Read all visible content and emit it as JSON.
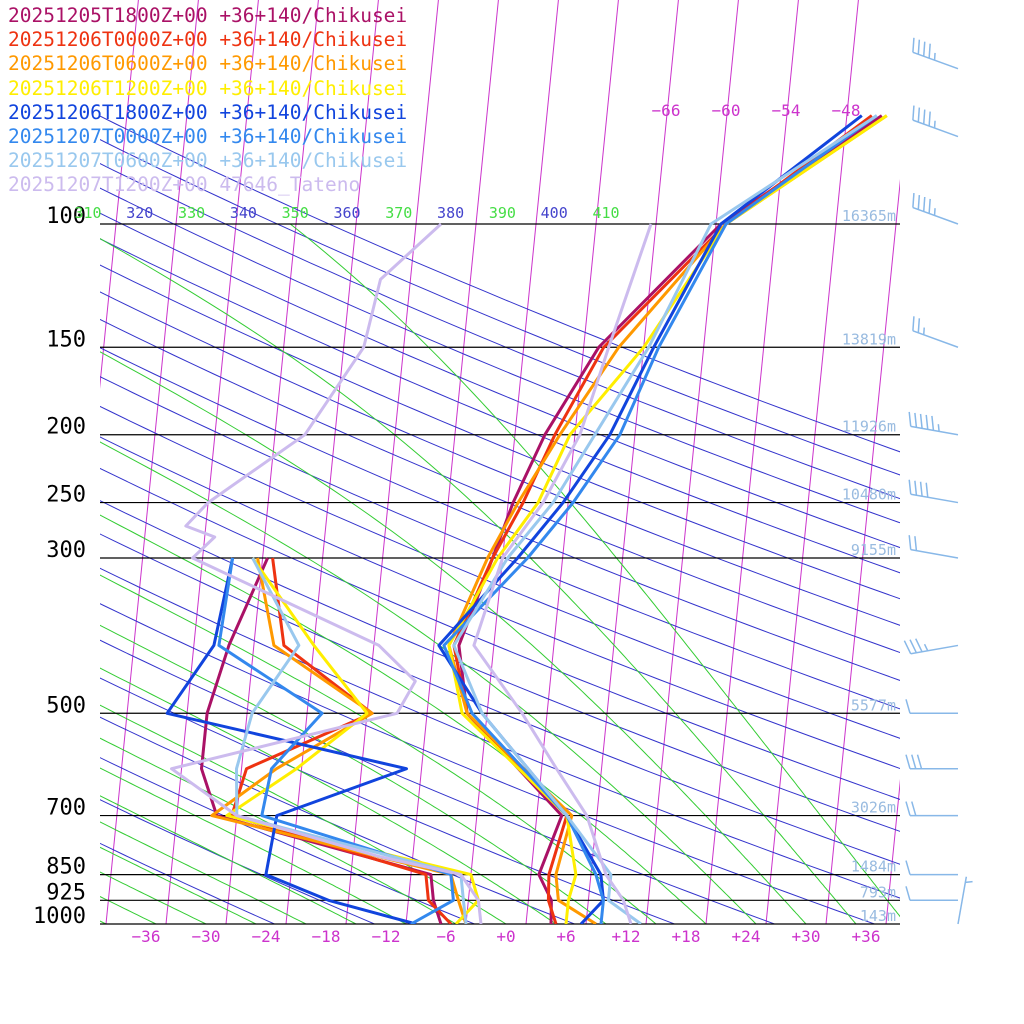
{
  "chart_data": {
    "type": "line",
    "subtype": "skew-t log-p sounding",
    "legend_position": "top-left",
    "pressure_axis": {
      "scale": "log",
      "range_hPa": [
        1000,
        100
      ],
      "levels": [
        {
          "p": 100,
          "label": "100",
          "height_label": "16365m"
        },
        {
          "p": 150,
          "label": "150",
          "height_label": "13819m"
        },
        {
          "p": 200,
          "label": "200",
          "height_label": "11926m"
        },
        {
          "p": 250,
          "label": "250",
          "height_label": "10480m"
        },
        {
          "p": 300,
          "label": "300",
          "height_label": "9155m"
        },
        {
          "p": 500,
          "label": "500",
          "height_label": "5577m"
        },
        {
          "p": 700,
          "label": "700",
          "height_label": "3026m"
        },
        {
          "p": 850,
          "label": "850",
          "height_label": "1484m"
        },
        {
          "p": 925,
          "label": "925",
          "height_label": "793m"
        },
        {
          "p": 1000,
          "label": "1000",
          "height_label": "143m"
        }
      ]
    },
    "temperature_axis": {
      "unit": "degC",
      "range": [
        -38,
        40
      ],
      "ticks": [
        {
          "v": -36,
          "label": "−36"
        },
        {
          "v": -30,
          "label": "−30"
        },
        {
          "v": -24,
          "label": "−24"
        },
        {
          "v": -18,
          "label": "−18"
        },
        {
          "v": -12,
          "label": "−12"
        },
        {
          "v": -6,
          "label": "−6"
        },
        {
          "v": 0,
          "label": "+0"
        },
        {
          "v": 6,
          "label": "+6"
        },
        {
          "v": 12,
          "label": "+12"
        },
        {
          "v": 18,
          "label": "+18"
        },
        {
          "v": 24,
          "label": "+24"
        },
        {
          "v": 30,
          "label": "+30"
        },
        {
          "v": 36,
          "label": "+36"
        }
      ],
      "upper_labels": [
        {
          "v": -66,
          "label": "−66"
        },
        {
          "v": -60,
          "label": "−60"
        },
        {
          "v": -54,
          "label": "−54"
        },
        {
          "v": -48,
          "label": "−48"
        }
      ]
    },
    "theta_e_labels": [
      {
        "v": 310,
        "label": "310"
      },
      {
        "v": 320,
        "label": "320"
      },
      {
        "v": 330,
        "label": "330"
      },
      {
        "v": 340,
        "label": "340"
      },
      {
        "v": 350,
        "label": "350"
      },
      {
        "v": 360,
        "label": "360"
      },
      {
        "v": 370,
        "label": "370"
      },
      {
        "v": 380,
        "label": "380"
      },
      {
        "v": 390,
        "label": "390"
      },
      {
        "v": 400,
        "label": "400"
      },
      {
        "v": 410,
        "label": "410"
      }
    ],
    "colors": {
      "isotherm": "#cc33cc",
      "dry_adiabat": "#3333cc",
      "moist_adiabat": "#33cc33",
      "isobar": "#000000",
      "height_label": "#99bbe0",
      "wind_barb": "#88b8e8"
    },
    "series": [
      {
        "name": "20251205T1800Z+00 +36+140/Chikusei",
        "color": "#aa1166",
        "temperature": [
          [
            1000,
            4.5
          ],
          [
            925,
            4.3
          ],
          [
            850,
            2.8
          ],
          [
            700,
            4.5
          ],
          [
            500,
            -6.0
          ],
          [
            400,
            -7.5
          ],
          [
            300,
            -5.0
          ],
          [
            250,
            -3.5
          ],
          [
            200,
            -1.0
          ],
          [
            150,
            3.5
          ],
          [
            100,
            14.5
          ],
          [
            70,
            29.5
          ]
        ],
        "dewpoint": [
          [
            1000,
            -6.5
          ],
          [
            925,
            -7.5
          ],
          [
            850,
            -8.0
          ],
          [
            700,
            -30.0
          ],
          [
            600,
            -32.0
          ],
          [
            500,
            -32.0
          ],
          [
            400,
            -30.5
          ],
          [
            300,
            -27.5
          ]
        ]
      },
      {
        "name": "20251206T0000Z+00 +36+140/Chikusei",
        "color": "#ee3311",
        "temperature": [
          [
            1000,
            5.0
          ],
          [
            925,
            4.0
          ],
          [
            850,
            3.8
          ],
          [
            700,
            5.0
          ],
          [
            500,
            -6.0
          ],
          [
            400,
            -8.0
          ],
          [
            300,
            -5.0
          ],
          [
            250,
            -2.5
          ],
          [
            200,
            0.0
          ],
          [
            150,
            4.0
          ],
          [
            100,
            15.0
          ],
          [
            70,
            28.5
          ]
        ],
        "dewpoint": [
          [
            1000,
            -5.5
          ],
          [
            925,
            -8.0
          ],
          [
            850,
            -8.5
          ],
          [
            700,
            -28.5
          ],
          [
            600,
            -27.5
          ],
          [
            500,
            -15.5
          ],
          [
            400,
            -25.0
          ],
          [
            300,
            -27.0
          ]
        ]
      },
      {
        "name": "20251206T0600Z+00 +36+140/Chikusei",
        "color": "#ff9900",
        "temperature": [
          [
            1000,
            9.0
          ],
          [
            925,
            5.0
          ],
          [
            850,
            4.5
          ],
          [
            700,
            5.5
          ],
          [
            500,
            -6.0
          ],
          [
            400,
            -8.5
          ],
          [
            300,
            -5.5
          ],
          [
            250,
            -3.0
          ],
          [
            200,
            0.5
          ],
          [
            150,
            5.5
          ],
          [
            100,
            15.0
          ],
          [
            70,
            30.0
          ]
        ],
        "dewpoint": [
          [
            1000,
            -4.0
          ],
          [
            925,
            -5.0
          ],
          [
            850,
            -6.0
          ],
          [
            700,
            -30.5
          ],
          [
            600,
            -24.5
          ],
          [
            500,
            -15.5
          ],
          [
            400,
            -26.0
          ],
          [
            300,
            -28.5
          ]
        ]
      },
      {
        "name": "20251206T1200Z+00 +36+140/Chikusei",
        "color": "#ffee00",
        "temperature": [
          [
            1000,
            6.0
          ],
          [
            925,
            6.0
          ],
          [
            850,
            6.5
          ],
          [
            700,
            5.0
          ],
          [
            500,
            -6.5
          ],
          [
            400,
            -8.5
          ],
          [
            300,
            -4.5
          ],
          [
            250,
            -1.0
          ],
          [
            200,
            1.5
          ],
          [
            150,
            8.0
          ],
          [
            100,
            15.0
          ],
          [
            70,
            30.0
          ]
        ],
        "dewpoint": [
          [
            1000,
            -5.0
          ],
          [
            925,
            -3.0
          ],
          [
            850,
            -4.0
          ],
          [
            700,
            -29.0
          ],
          [
            600,
            -22.5
          ],
          [
            500,
            -16.0
          ],
          [
            400,
            -22.0
          ],
          [
            300,
            -29.0
          ]
        ]
      },
      {
        "name": "20251206T1800Z+00 +36+140/Chikusei",
        "color": "#1144dd",
        "temperature": [
          [
            1000,
            7.5
          ],
          [
            925,
            9.5
          ],
          [
            850,
            9.0
          ],
          [
            700,
            5.0
          ],
          [
            500,
            -4.5
          ],
          [
            400,
            -9.5
          ],
          [
            300,
            -2.5
          ],
          [
            250,
            1.5
          ],
          [
            200,
            5.5
          ],
          [
            150,
            9.0
          ],
          [
            100,
            14.5
          ],
          [
            70,
            27.5
          ]
        ],
        "dewpoint": [
          [
            1000,
            -9.0
          ],
          [
            925,
            -18.0
          ],
          [
            850,
            -24.5
          ],
          [
            700,
            -24.0
          ],
          [
            600,
            -11.5
          ],
          [
            500,
            -36.0
          ],
          [
            400,
            -32.0
          ],
          [
            300,
            -31.0
          ]
        ]
      },
      {
        "name": "20251207T0000Z+00 +36+140/Chikusei",
        "color": "#3388ee",
        "temperature": [
          [
            1000,
            9.5
          ],
          [
            925,
            9.5
          ],
          [
            850,
            8.5
          ],
          [
            700,
            5.0
          ],
          [
            500,
            -5.5
          ],
          [
            400,
            -9.0
          ],
          [
            300,
            -1.5
          ],
          [
            250,
            2.5
          ],
          [
            200,
            6.5
          ],
          [
            150,
            9.5
          ],
          [
            100,
            15.0
          ],
          [
            70,
            29.0
          ]
        ],
        "dewpoint": [
          [
            1000,
            -9.5
          ],
          [
            925,
            -5.5
          ],
          [
            850,
            -6.0
          ],
          [
            700,
            -25.5
          ],
          [
            600,
            -25.0
          ],
          [
            500,
            -20.5
          ],
          [
            400,
            -31.5
          ],
          [
            300,
            -31.0
          ]
        ]
      },
      {
        "name": "20251207T0600Z+00 +36+140/Chikusei",
        "color": "#99c8ee",
        "temperature": [
          [
            1000,
            13.5
          ],
          [
            925,
            10.0
          ],
          [
            850,
            10.0
          ],
          [
            700,
            5.0
          ],
          [
            500,
            -4.5
          ],
          [
            400,
            -8.0
          ],
          [
            300,
            -3.5
          ],
          [
            250,
            0.5
          ],
          [
            200,
            4.0
          ],
          [
            150,
            8.5
          ],
          [
            100,
            13.5
          ],
          [
            70,
            29.0
          ]
        ],
        "dewpoint": [
          [
            1000,
            -4.0
          ],
          [
            925,
            -4.5
          ],
          [
            850,
            -5.0
          ],
          [
            700,
            -28.0
          ],
          [
            600,
            -28.5
          ],
          [
            500,
            -27.5
          ],
          [
            400,
            -23.5
          ],
          [
            300,
            -29.0
          ]
        ]
      },
      {
        "name": "20251207T1200Z+00 47646_Tateno",
        "color": "#ccbbee",
        "temperature": [
          [
            1000,
            12.5
          ],
          [
            925,
            11.5
          ],
          [
            850,
            9.5
          ],
          [
            700,
            7.0
          ],
          [
            600,
            3.5
          ],
          [
            500,
            -0.5
          ],
          [
            400,
            -6.0
          ],
          [
            300,
            -4.0
          ],
          [
            250,
            -0.5
          ],
          [
            200,
            2.5
          ],
          [
            150,
            4.5
          ],
          [
            100,
            7.5
          ]
        ],
        "dewpoint": [
          [
            1000,
            -2.5
          ],
          [
            925,
            -3.0
          ],
          [
            850,
            -5.0
          ],
          [
            800,
            -13.5
          ],
          [
            700,
            -28.0
          ],
          [
            600,
            -35.0
          ],
          [
            500,
            -13.0
          ],
          [
            450,
            -11.5
          ],
          [
            400,
            -15.5
          ],
          [
            300,
            -35.0
          ],
          [
            280,
            -33.0
          ],
          [
            270,
            -36.0
          ],
          [
            250,
            -34.0
          ],
          [
            200,
            -25.0
          ],
          [
            150,
            -20.0
          ],
          [
            120,
            -19.0
          ],
          [
            100,
            -13.5
          ]
        ]
      }
    ],
    "wind_barbs": [
      {
        "p": 60,
        "speed_kt": 45,
        "from_deg": 290
      },
      {
        "p": 75,
        "speed_kt": 45,
        "from_deg": 290
      },
      {
        "p": 100,
        "speed_kt": 45,
        "from_deg": 290
      },
      {
        "p": 150,
        "speed_kt": 25,
        "from_deg": 290
      },
      {
        "p": 200,
        "speed_kt": 55,
        "from_deg": 280
      },
      {
        "p": 250,
        "speed_kt": 40,
        "from_deg": 280
      },
      {
        "p": 300,
        "speed_kt": 20,
        "from_deg": 280
      },
      {
        "p": 400,
        "speed_kt": 35,
        "from_deg": 260
      },
      {
        "p": 500,
        "speed_kt": 10,
        "from_deg": 270
      },
      {
        "p": 600,
        "speed_kt": 30,
        "from_deg": 270
      },
      {
        "p": 700,
        "speed_kt": 20,
        "from_deg": 270
      },
      {
        "p": 850,
        "speed_kt": 10,
        "from_deg": 270
      },
      {
        "p": 925,
        "speed_kt": 10,
        "from_deg": 270
      },
      {
        "p": 1000,
        "speed_kt": 5,
        "from_deg": 10
      }
    ]
  }
}
